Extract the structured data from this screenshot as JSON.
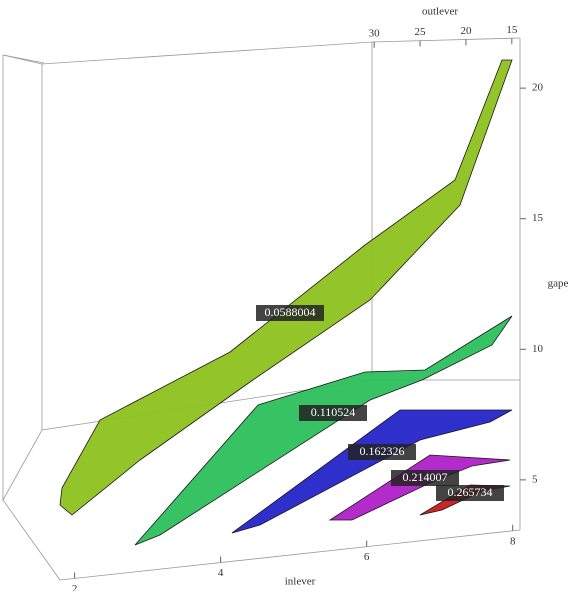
{
  "chart_data": {
    "type": "contour3d",
    "xlabel": "inlever",
    "ylabel": "outlever",
    "zlabel": "gape",
    "xlim": [
      1.8,
      8.1
    ],
    "xticks": [
      2,
      4,
      6,
      8
    ],
    "ylim": [
      31,
      14
    ],
    "yticks": [
      30,
      25,
      20,
      15
    ],
    "zlim": [
      4,
      21
    ],
    "zticks": [
      5,
      10,
      15,
      20
    ],
    "series": [
      {
        "value": 0.0588004,
        "color": "#8dc21f"
      },
      {
        "value": 0.110524,
        "color": "#2cbf5c"
      },
      {
        "value": 0.162326,
        "color": "#2424c8"
      },
      {
        "value": 0.214007,
        "color": "#b020c8"
      },
      {
        "value": 0.265734,
        "color": "#c81818"
      }
    ]
  }
}
